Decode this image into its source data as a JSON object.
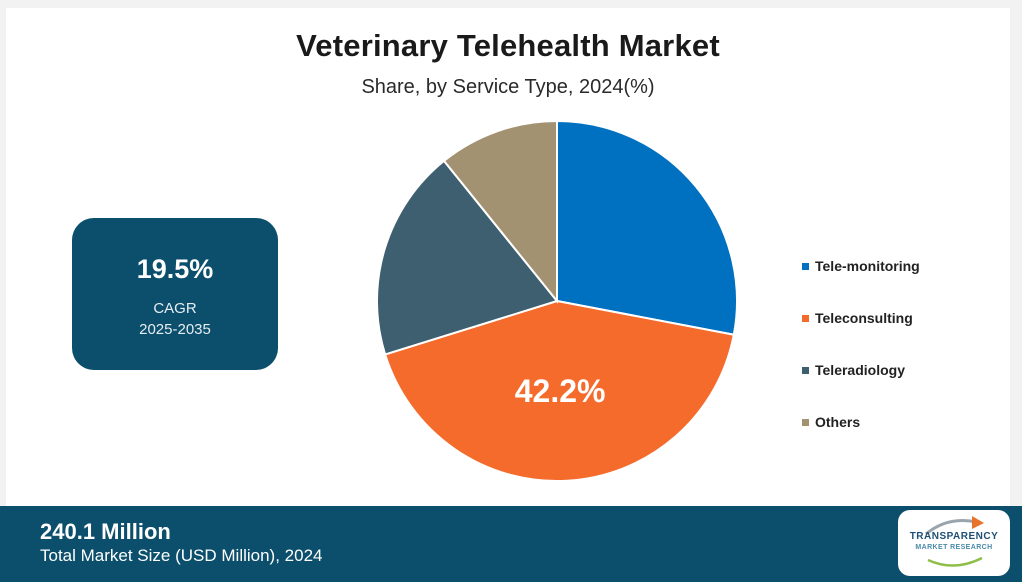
{
  "chart_data": {
    "type": "pie",
    "title": "Veterinary Telehealth Market",
    "subtitle": "Share, by Service Type, 2024(%)",
    "slices": [
      {
        "name": "Tele-monitoring",
        "value": 28.0,
        "color": "#0070c0"
      },
      {
        "name": "Teleconsulting",
        "value": 42.2,
        "color": "#f46b2c"
      },
      {
        "name": "Teleradiology",
        "value": 19.0,
        "color": "#3d5f70"
      },
      {
        "name": "Others",
        "value": 10.8,
        "color": "#a39271"
      }
    ],
    "data_label": "42.2%",
    "legend_position": "right"
  },
  "cagr": {
    "value": "19.5%",
    "label": "CAGR",
    "years": "2025-2035"
  },
  "footer": {
    "value": "240.1 Million",
    "label": "Total Market Size (USD Million), 2024"
  },
  "logo": {
    "line1": "TRANSPARENCY",
    "line2": "MARKET RESEARCH"
  },
  "colors": {
    "brand": "#0b4f6c",
    "background": "#f2f2f2"
  }
}
